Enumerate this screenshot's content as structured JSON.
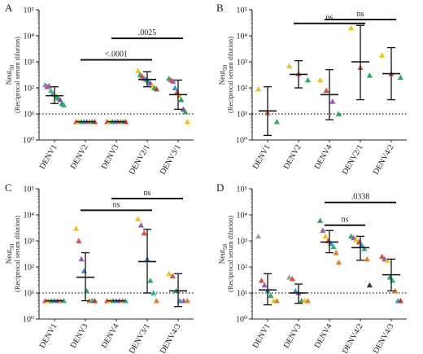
{
  "chart_data": [
    {
      "panel_label": "A",
      "type": "scatter",
      "ylabel_main": "Neut",
      "ylabel_sub": "50",
      "ylabel_paren": "(Reciprocal serum dilution)",
      "ylim": [
        1,
        100000
      ],
      "log_y": true,
      "yticks": [
        "10^0",
        "10^1",
        "10^2",
        "10^3",
        "10^4",
        "10^5"
      ],
      "threshold": 10,
      "categories": [
        "DENV1",
        "DENV2",
        "DENV3",
        "DENV2/1",
        "DENV3/1"
      ],
      "groups": [
        {
          "mean": 50,
          "err_low": 25,
          "err_high": 110,
          "points": [
            {
              "y": 130,
              "color": "#5b9bd5"
            },
            {
              "y": 110,
              "color": "#e74c3c"
            },
            {
              "y": 120,
              "color": "#9b59b6"
            },
            {
              "y": 80,
              "color": "#2ecc71"
            },
            {
              "y": 60,
              "color": "#3498db"
            },
            {
              "y": 55,
              "color": "#f1c40f"
            },
            {
              "y": 45,
              "color": "#1abc9c"
            },
            {
              "y": 40,
              "color": "#27ae60"
            },
            {
              "y": 35,
              "color": "#8e44ad"
            },
            {
              "y": 25,
              "color": "#16a085"
            },
            {
              "y": 22,
              "color": "#27ae60"
            }
          ]
        },
        {
          "mean": 5,
          "err_low": 5,
          "err_high": 5,
          "points": [
            {
              "y": 5,
              "color": "#e74c3c"
            },
            {
              "y": 5,
              "color": "#f1c40f"
            },
            {
              "y": 5,
              "color": "#27ae60"
            },
            {
              "y": 5,
              "color": "#3498db"
            },
            {
              "y": 5,
              "color": "#9b59b6"
            },
            {
              "y": 5,
              "color": "#e67e22"
            },
            {
              "y": 5,
              "color": "#1abc9c"
            },
            {
              "y": 5,
              "color": "#c0392b"
            }
          ]
        },
        {
          "mean": 5,
          "err_low": 5,
          "err_high": 5,
          "points": [
            {
              "y": 5,
              "color": "#e74c3c"
            },
            {
              "y": 5,
              "color": "#f1c40f"
            },
            {
              "y": 5,
              "color": "#27ae60"
            },
            {
              "y": 5,
              "color": "#3498db"
            },
            {
              "y": 5,
              "color": "#9b59b6"
            },
            {
              "y": 5,
              "color": "#e67e22"
            },
            {
              "y": 5,
              "color": "#1abc9c"
            },
            {
              "y": 5,
              "color": "#c0392b"
            }
          ]
        },
        {
          "mean": 210,
          "err_low": 110,
          "err_high": 420,
          "points": [
            {
              "y": 450,
              "color": "#f1c40f"
            },
            {
              "y": 320,
              "color": "#27ae60"
            },
            {
              "y": 280,
              "color": "#e74c3c"
            },
            {
              "y": 230,
              "color": "#9b59b6"
            },
            {
              "y": 210,
              "color": "#3498db"
            },
            {
              "y": 180,
              "color": "#1abc9c"
            },
            {
              "y": 150,
              "color": "#8e44ad"
            },
            {
              "y": 120,
              "color": "#f1c40f"
            },
            {
              "y": 100,
              "color": "#27ae60"
            },
            {
              "y": 90,
              "color": "#c0392b"
            }
          ]
        },
        {
          "mean": 55,
          "err_low": 15,
          "err_high": 200,
          "points": [
            {
              "y": 230,
              "color": "#27ae60"
            },
            {
              "y": 200,
              "color": "#e74c3c"
            },
            {
              "y": 180,
              "color": "#9b59b6"
            },
            {
              "y": 100,
              "color": "#3498db"
            },
            {
              "y": 70,
              "color": "#e74c3c"
            },
            {
              "y": 50,
              "color": "#f1c40f"
            },
            {
              "y": 35,
              "color": "#16a085"
            },
            {
              "y": 15,
              "color": "#8e44ad"
            },
            {
              "y": 12,
              "color": "#27ae60"
            },
            {
              "y": 5,
              "color": "#f1c40f"
            }
          ]
        }
      ],
      "comparisons": [
        {
          "from": 1,
          "to": 3,
          "label": "<.0001",
          "y": 1200
        },
        {
          "from": 2,
          "to": 4,
          "label": ".0025",
          "y": 8000
        }
      ]
    },
    {
      "panel_label": "B",
      "type": "scatter",
      "ylabel_main": "Neut",
      "ylabel_sub": "50",
      "ylabel_paren": "(Reciprocal serum dilution)",
      "ylim": [
        1,
        100000
      ],
      "log_y": true,
      "yticks": [
        "10^0",
        "10^1",
        "10^2",
        "10^3",
        "10^4",
        "10^5"
      ],
      "threshold": 10,
      "categories": [
        "DENV1",
        "DENV2",
        "DENV4",
        "DENV2/1",
        "DENV4/2"
      ],
      "groups": [
        {
          "mean": 13,
          "err_low": 1.5,
          "err_high": 110,
          "points": [
            {
              "y": 90,
              "color": "#f1c40f"
            },
            {
              "y": 11,
              "color": "#e74c3c"
            },
            {
              "y": 5,
              "color": "#27ae60"
            }
          ]
        },
        {
          "mean": 330,
          "err_low": 100,
          "err_high": 1100,
          "points": [
            {
              "y": 700,
              "color": "#f1c40f"
            },
            {
              "y": 350,
              "color": "#e74c3c"
            },
            {
              "y": 200,
              "color": "#27ae60"
            }
          ]
        },
        {
          "mean": 55,
          "err_low": 6,
          "err_high": 500,
          "points": [
            {
              "y": 200,
              "color": "#f1c40f"
            },
            {
              "y": 80,
              "color": "#e74c3c"
            },
            {
              "y": 30,
              "color": "#9b59b6"
            },
            {
              "y": 10,
              "color": "#27ae60"
            }
          ]
        },
        {
          "mean": 1000,
          "err_low": 35,
          "err_high": 25000,
          "points": [
            {
              "y": 20000,
              "color": "#f1c40f"
            },
            {
              "y": 600,
              "color": "#e74c3c"
            },
            {
              "y": 300,
              "color": "#27ae60"
            }
          ]
        },
        {
          "mean": 350,
          "err_low": 35,
          "err_high": 3500,
          "points": [
            {
              "y": 1800,
              "color": "#f1c40f"
            },
            {
              "y": 350,
              "color": "#e74c3c"
            },
            {
              "y": 250,
              "color": "#27ae60"
            }
          ]
        }
      ],
      "comparisons": [
        {
          "from": 1,
          "to": 3,
          "label": "ns",
          "y": 30000
        },
        {
          "from": 2,
          "to": 4,
          "label": "ns",
          "y": 150000
        }
      ]
    },
    {
      "panel_label": "C",
      "type": "scatter",
      "ylabel_main": "Neut",
      "ylabel_sub": "50",
      "ylabel_paren": "(Reciprocal serum dilution)",
      "ylim": [
        1,
        100000
      ],
      "log_y": true,
      "yticks": [
        "10^0",
        "10^1",
        "10^2",
        "10^3",
        "10^4",
        "10^5"
      ],
      "threshold": 10,
      "categories": [
        "DENV1",
        "DENV3",
        "DENV4",
        "DENV3/1",
        "DENV4/3"
      ],
      "groups": [
        {
          "mean": 5,
          "err_low": 5,
          "err_high": 5,
          "points": [
            {
              "y": 5,
              "color": "#e74c3c"
            },
            {
              "y": 5,
              "color": "#f1c40f"
            },
            {
              "y": 5,
              "color": "#27ae60"
            },
            {
              "y": 5,
              "color": "#3498db"
            },
            {
              "y": 5,
              "color": "#9b59b6"
            },
            {
              "y": 5,
              "color": "#e67e22"
            },
            {
              "y": 5,
              "color": "#1abc9c"
            }
          ]
        },
        {
          "mean": 40,
          "err_low": 5,
          "err_high": 350,
          "points": [
            {
              "y": 3000,
              "color": "#f1c40f"
            },
            {
              "y": 1000,
              "color": "#e74c3c"
            },
            {
              "y": 200,
              "color": "#9b59b6"
            },
            {
              "y": 70,
              "color": "#3498db"
            },
            {
              "y": 12,
              "color": "#27ae60"
            },
            {
              "y": 5,
              "color": "#e67e22"
            },
            {
              "y": 5,
              "color": "#1abc9c"
            },
            {
              "y": 5,
              "color": "#c0392b"
            }
          ]
        },
        {
          "mean": 5,
          "err_low": 5,
          "err_high": 5,
          "points": [
            {
              "y": 5,
              "color": "#e74c3c"
            },
            {
              "y": 5,
              "color": "#f1c40f"
            },
            {
              "y": 5,
              "color": "#27ae60"
            },
            {
              "y": 5,
              "color": "#3498db"
            },
            {
              "y": 5,
              "color": "#9b59b6"
            },
            {
              "y": 5,
              "color": "#e67e22"
            },
            {
              "y": 5,
              "color": "#1abc9c"
            }
          ]
        },
        {
          "mean": 160,
          "err_low": 10,
          "err_high": 2800,
          "points": [
            {
              "y": 7000,
              "color": "#f1c40f"
            },
            {
              "y": 4000,
              "color": "#9b59b6"
            },
            {
              "y": 2000,
              "color": "#e74c3c"
            },
            {
              "y": 200,
              "color": "#3498db"
            },
            {
              "y": 30,
              "color": "#27ae60"
            },
            {
              "y": 10,
              "color": "#1abc9c"
            },
            {
              "y": 5,
              "color": "#e67e22"
            }
          ]
        },
        {
          "mean": 12,
          "err_low": 3,
          "err_high": 55,
          "points": [
            {
              "y": 55,
              "color": "#f1c40f"
            },
            {
              "y": 45,
              "color": "#e74c3c"
            },
            {
              "y": 12,
              "color": "#27ae60"
            },
            {
              "y": 5,
              "color": "#3498db"
            },
            {
              "y": 5,
              "color": "#9b59b6"
            },
            {
              "y": 5,
              "color": "#e67e22"
            }
          ]
        }
      ],
      "comparisons": [
        {
          "from": 1,
          "to": 3,
          "label": "ns",
          "y": 15000
        },
        {
          "from": 2,
          "to": 4,
          "label": "ns",
          "y": 80000
        }
      ]
    },
    {
      "panel_label": "D",
      "type": "scatter",
      "ylabel_main": "Neut",
      "ylabel_sub": "50",
      "ylabel_paren": "(Reciprocal serum dilution)",
      "ylim": [
        1,
        100000
      ],
      "log_y": true,
      "yticks": [
        "10^0",
        "10^1",
        "10^2",
        "10^3",
        "10^4",
        "10^5"
      ],
      "threshold": 10,
      "categories": [
        "DENV1",
        "DENV3",
        "DENV4",
        "DENV4/2",
        "DENV4/3"
      ],
      "groups": [
        {
          "mean": 13,
          "err_low": 3.5,
          "err_high": 55,
          "points": [
            {
              "y": 1500,
              "color": "#95a5a6"
            },
            {
              "y": 30,
              "color": "#e74c3c"
            },
            {
              "y": 20,
              "color": "#9b59b6"
            },
            {
              "y": 12,
              "color": "#3498db"
            },
            {
              "y": 8,
              "color": "#27ae60"
            },
            {
              "y": 5,
              "color": "#f1c40f"
            },
            {
              "y": 5,
              "color": "#e67e22"
            }
          ]
        },
        {
          "mean": 10,
          "err_low": 4,
          "err_high": 22,
          "points": [
            {
              "y": 40,
              "color": "#95a5a6"
            },
            {
              "y": 35,
              "color": "#e74c3c"
            },
            {
              "y": 12,
              "color": "#3498db"
            },
            {
              "y": 10,
              "color": "#9b59b6"
            },
            {
              "y": 5,
              "color": "#27ae60"
            },
            {
              "y": 5,
              "color": "#f1c40f"
            },
            {
              "y": 5,
              "color": "#e67e22"
            }
          ]
        },
        {
          "mean": 900,
          "err_low": 350,
          "err_high": 2500,
          "points": [
            {
              "y": 6000,
              "color": "#27ae60"
            },
            {
              "y": 2500,
              "color": "#9b59b6"
            },
            {
              "y": 1500,
              "color": "#f1c40f"
            },
            {
              "y": 1000,
              "color": "#e74c3c"
            },
            {
              "y": 800,
              "color": "#3498db"
            },
            {
              "y": 600,
              "color": "#1abc9c"
            },
            {
              "y": 350,
              "color": "#e67e22"
            },
            {
              "y": 150,
              "color": "#e67e22"
            }
          ]
        },
        {
          "mean": 550,
          "err_low": 180,
          "err_high": 1500,
          "points": [
            {
              "y": 1500,
              "color": "#27ae60"
            },
            {
              "y": 1300,
              "color": "#9b59b6"
            },
            {
              "y": 1100,
              "color": "#f1c40f"
            },
            {
              "y": 900,
              "color": "#e74c3c"
            },
            {
              "y": 700,
              "color": "#3498db"
            },
            {
              "y": 500,
              "color": "#1abc9c"
            },
            {
              "y": 200,
              "color": "#e67e22"
            },
            {
              "y": 20,
              "color": "#2c3e50"
            }
          ]
        },
        {
          "mean": 50,
          "err_low": 12,
          "err_high": 200,
          "points": [
            {
              "y": 250,
              "color": "#e74c3c"
            },
            {
              "y": 200,
              "color": "#9b59b6"
            },
            {
              "y": 180,
              "color": "#f1c40f"
            },
            {
              "y": 40,
              "color": "#27ae60"
            },
            {
              "y": 30,
              "color": "#1abc9c"
            },
            {
              "y": 12,
              "color": "#e67e22"
            },
            {
              "y": 5,
              "color": "#3498db"
            },
            {
              "y": 5,
              "color": "#c0392b"
            }
          ]
        }
      ],
      "comparisons": [
        {
          "from": 2,
          "to": 3,
          "label": "ns",
          "y": 4000
        },
        {
          "from": 2,
          "to": 4,
          "label": ".0338",
          "y": 30000
        }
      ]
    }
  ]
}
